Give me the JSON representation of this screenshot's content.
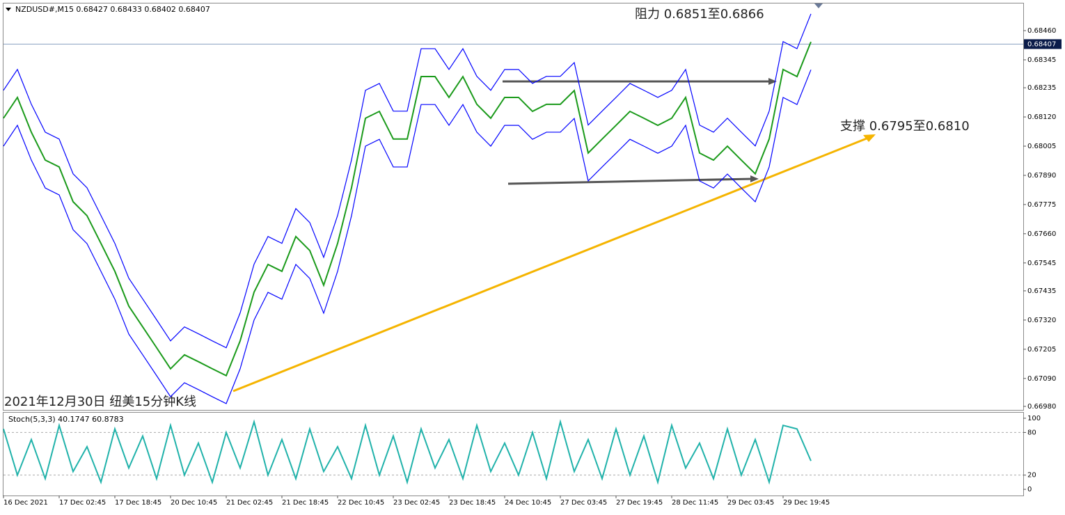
{
  "header": "NZDUSD#,M15  0.68427 0.68433 0.68402 0.68407",
  "chart_data": [
    {
      "type": "line",
      "annotations": [
        "阻力 0.6851至0.6866",
        "支撑 0.6795至0.6810",
        "2021年12月30日 纽美15分钟K线"
      ],
      "categories": [
        "16 Dec 2021",
        null,
        null,
        null,
        "17 Dec 02:45",
        null,
        null,
        null,
        "17 Dec 18:45",
        null,
        null,
        null,
        "20 Dec 10:45",
        null,
        null,
        null,
        "21 Dec 02:45",
        null,
        null,
        null,
        "21 Dec 18:45",
        null,
        null,
        null,
        "22 Dec 10:45",
        null,
        null,
        null,
        "23 Dec 02:45",
        null,
        null,
        null,
        "23 Dec 18:45",
        null,
        null,
        null,
        "24 Dec 10:45",
        null,
        null,
        null,
        "27 Dec 03:45",
        null,
        null,
        null,
        "27 Dec 19:45",
        null,
        null,
        null,
        "28 Dec 11:45",
        null,
        null,
        null,
        "29 Dec 03:45",
        null,
        null,
        null,
        "29 Dec 19:45",
        null,
        null
      ],
      "series": [
        {
          "color": "#1a9a1a",
          "values": [
            0.68115,
            0.68197,
            0.6806,
            0.6795,
            0.67923,
            0.67786,
            0.67731,
            0.67622,
            0.67512,
            0.67375,
            0.67293,
            0.67211,
            0.67128,
            0.67183,
            0.67156,
            0.67128,
            0.67101,
            0.67238,
            0.6743,
            0.67539,
            0.67512,
            0.67649,
            0.67594,
            0.67457,
            0.67622,
            0.67841,
            0.68115,
            0.68142,
            0.68033,
            0.68033,
            0.68279,
            0.68279,
            0.68197,
            0.68279,
            0.6817,
            0.68115,
            0.68197,
            0.68197,
            0.68142,
            0.6817,
            0.6817,
            0.68224,
            0.67978,
            0.68033,
            0.68087,
            0.68142,
            0.68115,
            0.68087,
            0.68115,
            0.68197,
            0.67978,
            0.6795,
            0.68005,
            0.6795,
            0.67896,
            0.68033,
            0.68307,
            0.68279,
            0.68416
          ]
        },
        {
          "color": "#0000ff",
          "values": [
            0.68225,
            0.68307,
            0.6817,
            0.6806,
            0.68033,
            0.67896,
            0.67841,
            0.67732,
            0.67622,
            0.67485,
            0.67403,
            0.67321,
            0.67238,
            0.67293,
            0.67266,
            0.67238,
            0.67211,
            0.67348,
            0.6754,
            0.67649,
            0.67622,
            0.67759,
            0.67704,
            0.67567,
            0.67732,
            0.67951,
            0.68225,
            0.68252,
            0.68143,
            0.68143,
            0.68389,
            0.68389,
            0.68307,
            0.68389,
            0.6828,
            0.68225,
            0.68307,
            0.68307,
            0.68252,
            0.6828,
            0.6828,
            0.68334,
            0.68088,
            0.68143,
            0.68197,
            0.68252,
            0.68225,
            0.68197,
            0.68225,
            0.68307,
            0.68088,
            0.6806,
            0.68115,
            0.6806,
            0.68006,
            0.68143,
            0.68417,
            0.68389,
            0.68526
          ]
        },
        {
          "color": "#0000ff",
          "values": [
            0.68005,
            0.68087,
            0.6795,
            0.6784,
            0.67813,
            0.67676,
            0.67621,
            0.67512,
            0.67402,
            0.67265,
            0.67183,
            0.67101,
            0.67018,
            0.67073,
            0.67046,
            0.67018,
            0.66991,
            0.67128,
            0.6732,
            0.67429,
            0.67402,
            0.67539,
            0.67484,
            0.67347,
            0.67512,
            0.67731,
            0.68005,
            0.68032,
            0.67923,
            0.67923,
            0.68169,
            0.68169,
            0.68087,
            0.68169,
            0.6806,
            0.68005,
            0.68087,
            0.68087,
            0.68032,
            0.6806,
            0.6806,
            0.68114,
            0.67868,
            0.67923,
            0.67977,
            0.68032,
            0.68005,
            0.67977,
            0.68005,
            0.68087,
            0.67868,
            0.6784,
            0.67895,
            0.6784,
            0.67786,
            0.67923,
            0.68197,
            0.68169,
            0.68306
          ]
        }
      ],
      "ylim": [
        0.66966,
        0.68567
      ],
      "yticks": [
        {
          "value": 0.6846,
          "label": "0.68460"
        },
        0.68345,
        0.68235,
        {
          "value": 0.6812,
          "label": "0.68120"
        },
        0.68005,
        {
          "value": 0.6789,
          "label": "0.67890"
        },
        0.67775,
        {
          "value": 0.6766,
          "label": "0.67660"
        },
        0.67545,
        0.67435,
        {
          "value": 0.6732,
          "label": "0.67320"
        },
        0.67205,
        {
          "value": 0.6709,
          "label": "0.67090"
        },
        {
          "value": 0.6698,
          "label": "0.66980"
        }
      ],
      "price_line": 0.68407,
      "grid": false
    },
    {
      "type": "line",
      "title": "Stoch(5,3,3) 40.1747 60.8783",
      "series": [
        {
          "color": "#20b2aa",
          "values": [
            85,
            20,
            70,
            15,
            90,
            25,
            60,
            10,
            85,
            30,
            75,
            15,
            90,
            20,
            65,
            10,
            80,
            30,
            95,
            20,
            70,
            15,
            85,
            25,
            60,
            15,
            90,
            20,
            75,
            10,
            85,
            30,
            70,
            15,
            90,
            25,
            65,
            20,
            80,
            15,
            95,
            25,
            70,
            15,
            85,
            20,
            75,
            10,
            90,
            30,
            65,
            15,
            85,
            20,
            70,
            10,
            90,
            85,
            40
          ]
        }
      ],
      "ylim": [
        -8.7,
        107.8
      ],
      "yticks": [
        100,
        80,
        20,
        0
      ],
      "levels": [
        80,
        20
      ]
    }
  ]
}
